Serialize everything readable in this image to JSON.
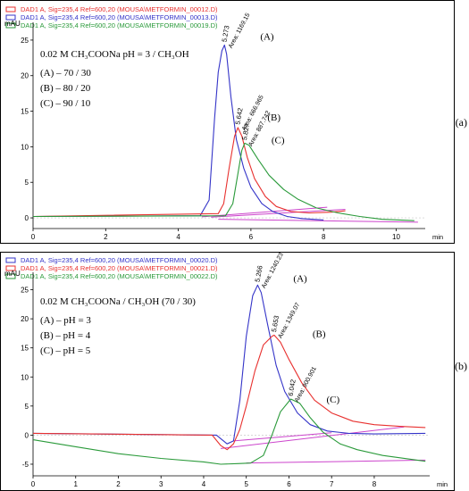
{
  "chart_data": [
    {
      "type": "line",
      "panel_label": "(a)",
      "ylabel": "mAU",
      "xlabel": "min",
      "xlim": [
        0,
        10.8
      ],
      "ylim": [
        -1.5,
        27.5
      ],
      "x_ticks": [
        0,
        2,
        4,
        6,
        8,
        10
      ],
      "y_ticks": [
        0,
        5,
        10,
        15,
        20,
        25
      ],
      "legend": [
        {
          "text": "DAD1 A, Sig=235,4 Ref=600,20 (MOUSA\\METFORMIN_00012.D)",
          "color": "#e8312f"
        },
        {
          "text": "DAD1 A, Sig=235,4 Ref=600,20 (MOUSA\\METFORMIN_00013.D)",
          "color": "#3434c8"
        },
        {
          "text": "DAD1 A, Sig=235,4 Ref=600,20 (MOUSA\\METFORMIN_00019.D)",
          "color": "#2a9a3a"
        }
      ],
      "annotation_lines": [
        "0.02 M CH₃COONa pH = 3 / CH₃OH",
        "(A) – 70 / 30",
        "(B) – 80 / 20",
        "(C) – 90 / 10"
      ],
      "series": [
        {
          "color": "#3434c8",
          "x": [
            0,
            4.6,
            4.85,
            5.0,
            5.1,
            5.2,
            5.273,
            5.33,
            5.45,
            5.6,
            5.8,
            6.0,
            6.3,
            6.6,
            7.0,
            7.4,
            8.0
          ],
          "y": [
            0.2,
            0.3,
            2.5,
            14.0,
            20.5,
            23.5,
            24.3,
            23.0,
            17.0,
            11.0,
            7.0,
            4.3,
            2.0,
            0.9,
            0.2,
            -0.1,
            -0.3
          ],
          "peak": {
            "x": 5.273,
            "y": 24.3,
            "rt": "5.273",
            "area": "Area: 1169.15",
            "label": "(A)"
          }
        },
        {
          "color": "#e8312f",
          "x": [
            0,
            5.1,
            5.25,
            5.4,
            5.55,
            5.642,
            5.75,
            5.9,
            6.1,
            6.4,
            6.7,
            7.1,
            7.6,
            8.2,
            8.6
          ],
          "y": [
            0.2,
            0.6,
            2.0,
            7.0,
            11.5,
            12.7,
            11.5,
            8.5,
            5.5,
            3.0,
            1.6,
            0.9,
            0.7,
            0.8,
            1.0
          ],
          "peak": {
            "x": 5.642,
            "y": 12.7,
            "rt": "5.642",
            "area": "Area: 666.965",
            "label": "(B)"
          }
        },
        {
          "color": "#2a9a3a",
          "x": [
            0,
            5.3,
            5.5,
            5.65,
            5.75,
            5.827,
            5.95,
            6.2,
            6.5,
            6.9,
            7.3,
            7.8,
            8.4,
            9.0,
            9.6,
            10.5
          ],
          "y": [
            0.2,
            0.3,
            2.0,
            6.5,
            9.5,
            10.5,
            10.2,
            8.2,
            6.0,
            4.0,
            2.6,
            1.4,
            0.7,
            0.2,
            -0.2,
            -0.4
          ],
          "peak": {
            "x": 5.827,
            "y": 10.5,
            "rt": "5.827",
            "area": "Area: 887.742",
            "label": "(C)"
          }
        }
      ],
      "baselines": [
        {
          "color": "#cc44cc",
          "x": [
            4.65,
            8.1
          ],
          "y": [
            0.15,
            1.5
          ]
        },
        {
          "color": "#cc44cc",
          "x": [
            4.9,
            8.6
          ],
          "y": [
            0.1,
            1.2
          ]
        },
        {
          "color": "#cc44cc",
          "x": [
            5.1,
            10.6
          ],
          "y": [
            -0.2,
            -0.6
          ]
        }
      ]
    },
    {
      "type": "line",
      "panel_label": "(b)",
      "ylabel": "mAU",
      "xlabel": "min",
      "xlim": [
        0,
        9.3
      ],
      "ylim": [
        -7,
        28
      ],
      "x_ticks": [
        0,
        1,
        2,
        3,
        4,
        5,
        6,
        7,
        8
      ],
      "y_ticks": [
        -5,
        0,
        5,
        10,
        15,
        20,
        25
      ],
      "legend": [
        {
          "text": "DAD1 A, Sig=235,4 Ref=600,20 (MOUSA\\METFORMIN_00020.D)",
          "color": "#3434c8"
        },
        {
          "text": "DAD1 A, Sig=235,4 Ref=600,20 (MOUSA\\METFORMIN_00021.D)",
          "color": "#e8312f"
        },
        {
          "text": "DAD1 A, Sig=235,4 Ref=600,20 (MOUSA\\METFORMIN_00022.D)",
          "color": "#2a9a3a"
        }
      ],
      "annotation_lines": [
        "0.02 M CH₃COONa / CH₃OH (70 / 30)",
        "(A) – pH = 3",
        "(B) – pH = 4",
        "(C) – pH = 5"
      ],
      "series": [
        {
          "color": "#3434c8",
          "x": [
            0,
            4.3,
            4.55,
            4.7,
            4.85,
            5.0,
            5.15,
            5.266,
            5.35,
            5.5,
            5.7,
            5.9,
            6.2,
            6.5,
            6.9,
            7.4,
            8.0,
            9.2
          ],
          "y": [
            0.3,
            0.0,
            -1.5,
            -1.0,
            6.0,
            17.0,
            24.0,
            25.8,
            24.5,
            19.0,
            12.0,
            7.5,
            3.8,
            1.8,
            0.7,
            0.3,
            0.2,
            0.3
          ],
          "peak": {
            "x": 5.266,
            "y": 25.8,
            "rt": "5.266",
            "area": "Area: 1240.23",
            "label": "(A)"
          }
        },
        {
          "color": "#e8312f",
          "x": [
            0,
            4.2,
            4.4,
            4.55,
            4.7,
            4.85,
            5.0,
            5.2,
            5.4,
            5.6,
            5.653,
            5.8,
            6.0,
            6.3,
            6.6,
            7.0,
            7.5,
            8.0,
            8.6,
            9.2
          ],
          "y": [
            0.3,
            0.0,
            -1.8,
            -2.5,
            -1.5,
            1.0,
            5.0,
            11.0,
            15.5,
            17.0,
            17.2,
            16.0,
            13.0,
            9.0,
            6.0,
            3.8,
            2.4,
            1.8,
            1.5,
            1.3
          ],
          "peak": {
            "x": 5.653,
            "y": 17.2,
            "rt": "5.653",
            "area": "Area: 1349.07",
            "label": "(B)"
          }
        },
        {
          "color": "#2a9a3a",
          "x": [
            0,
            1.0,
            2.0,
            3.0,
            4.0,
            4.4,
            4.8,
            5.1,
            5.4,
            5.6,
            5.8,
            6.042,
            6.25,
            6.5,
            6.8,
            7.2,
            7.6,
            8.2,
            9.2
          ],
          "y": [
            -0.8,
            -2.0,
            -3.2,
            -4.0,
            -4.6,
            -5.0,
            -4.9,
            -4.8,
            -3.5,
            0.0,
            4.0,
            6.2,
            5.5,
            3.0,
            0.5,
            -1.5,
            -2.5,
            -3.5,
            -4.5
          ],
          "peak": {
            "x": 6.042,
            "y": 6.2,
            "rt": "6.042",
            "area": "Area: 900.901",
            "label": "(C)"
          }
        }
      ],
      "baselines": [
        {
          "color": "#cc44cc",
          "x": [
            4.7,
            7.0
          ],
          "y": [
            -1.0,
            0.4
          ]
        },
        {
          "color": "#cc44cc",
          "x": [
            4.4,
            8.7
          ],
          "y": [
            -2.3,
            1.4
          ]
        },
        {
          "color": "#cc44cc",
          "x": [
            5.0,
            9.2
          ],
          "y": [
            -4.8,
            -4.3
          ]
        }
      ]
    }
  ]
}
